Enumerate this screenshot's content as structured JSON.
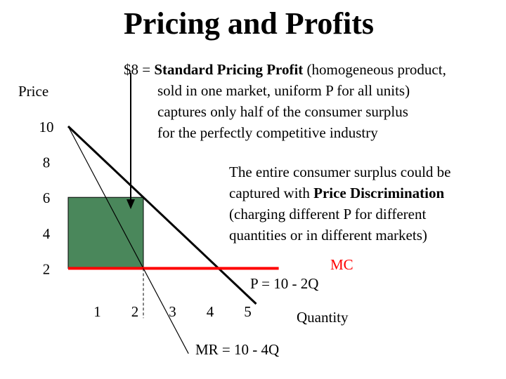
{
  "slide": {
    "title": "Pricing and Profits",
    "note_standard": {
      "prefix": "$8 = ",
      "bold": "Standard Pricing Profit",
      "line1_rest": " (homogeneous product,",
      "line2": "sold in one market, uniform P for all units)",
      "line3": "captures only half of the consumer surplus",
      "line4": "for the perfectly competitive industry"
    },
    "note_discrimination": {
      "line1": "The entire consumer surplus could be",
      "line2_plain": "captured with ",
      "line2_bold": "Price Discrimination",
      "line3": "(charging different P for different",
      "line4": "quantities or in different markets)"
    }
  },
  "chart_data": {
    "type": "line",
    "ylabel": "Price",
    "xlabel": "Quantity",
    "xlim": [
      0,
      5.6
    ],
    "ylim": [
      0,
      10.5
    ],
    "x_ticks": [
      "1",
      "2",
      "3",
      "4",
      "5"
    ],
    "y_ticks": [
      "2",
      "4",
      "6",
      "8",
      "10"
    ],
    "series": [
      {
        "name": "P = 10 - 2Q",
        "x": [
          0,
          5
        ],
        "y": [
          10,
          0
        ],
        "color": "#000000"
      },
      {
        "name": "MR = 10 - 4Q",
        "x": [
          0,
          3.2
        ],
        "y": [
          10,
          -2.8
        ],
        "color": "#000000"
      },
      {
        "name": "MC",
        "x": [
          0,
          5.6
        ],
        "y": [
          2,
          2
        ],
        "color": "#ff0000"
      }
    ],
    "profit_area": {
      "x": [
        0,
        2
      ],
      "y": [
        2,
        6
      ],
      "color": "#4a875b"
    },
    "quantity_marker": {
      "x": 2,
      "y_top": 2
    }
  }
}
